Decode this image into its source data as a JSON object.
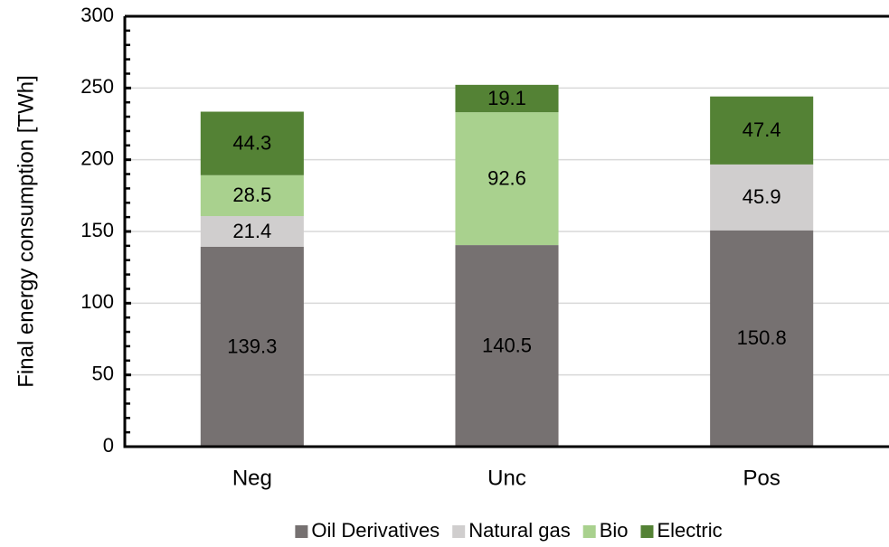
{
  "chart_data": {
    "type": "stacked_bar",
    "y_label": "Final energy consumption [TWh]",
    "categories": [
      "Neg",
      "Unc",
      "Pos"
    ],
    "series": [
      {
        "name": "Oil Derivatives",
        "color": "#767171",
        "values": [
          139.3,
          140.5,
          150.8
        ]
      },
      {
        "name": "Natural gas",
        "color": "#d0cece",
        "values": [
          21.4,
          null,
          45.9
        ]
      },
      {
        "name": "Bio",
        "color": "#a9d18e",
        "values": [
          28.5,
          92.6,
          null
        ]
      },
      {
        "name": "Electric",
        "color": "#548235",
        "values": [
          44.3,
          19.1,
          47.4
        ]
      }
    ],
    "ylim": [
      0,
      300
    ],
    "yticks": [
      0,
      50,
      100,
      150,
      200,
      250,
      300
    ],
    "grid": true,
    "legend": "bottom"
  }
}
